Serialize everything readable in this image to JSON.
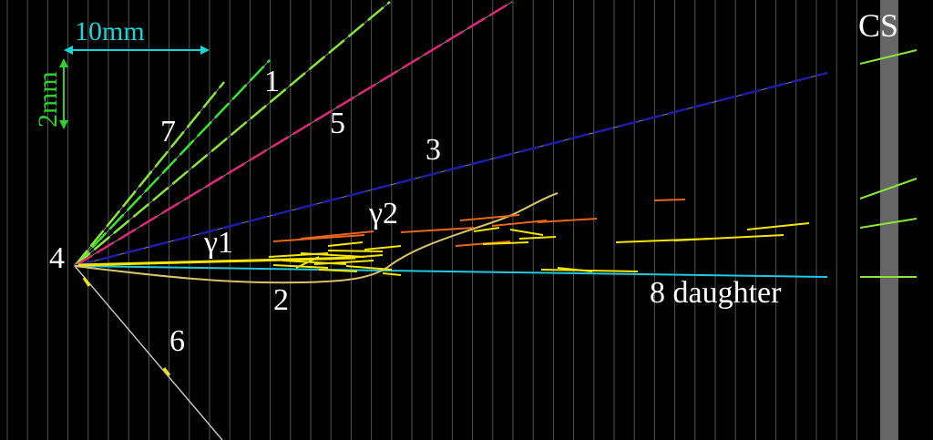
{
  "scale": {
    "horizontal": "10mm",
    "vertical": "2mm"
  },
  "track_labels": {
    "t1": "1",
    "t2": "2",
    "t3": "3",
    "t4": "4",
    "t5": "5",
    "t6": "6",
    "t7": "7",
    "gamma1": "γ1",
    "gamma2": "γ2",
    "daughter": "8 daughter"
  },
  "sheet_label": "CS",
  "colors": {
    "background": "#000000",
    "scale_horizontal": "#19d6d6",
    "scale_vertical": "#2fd12f",
    "track1": "#36e62f",
    "track3": "#1d1da8",
    "track5": "#e0287a",
    "track6": "#c0c0c0",
    "track7": "#8ae63a",
    "track2": "#d8c36a",
    "track8": "#24c8e0",
    "gamma": "#f5e600",
    "shower_orange": "#e8661a",
    "cs_sheet": "#666666"
  }
}
